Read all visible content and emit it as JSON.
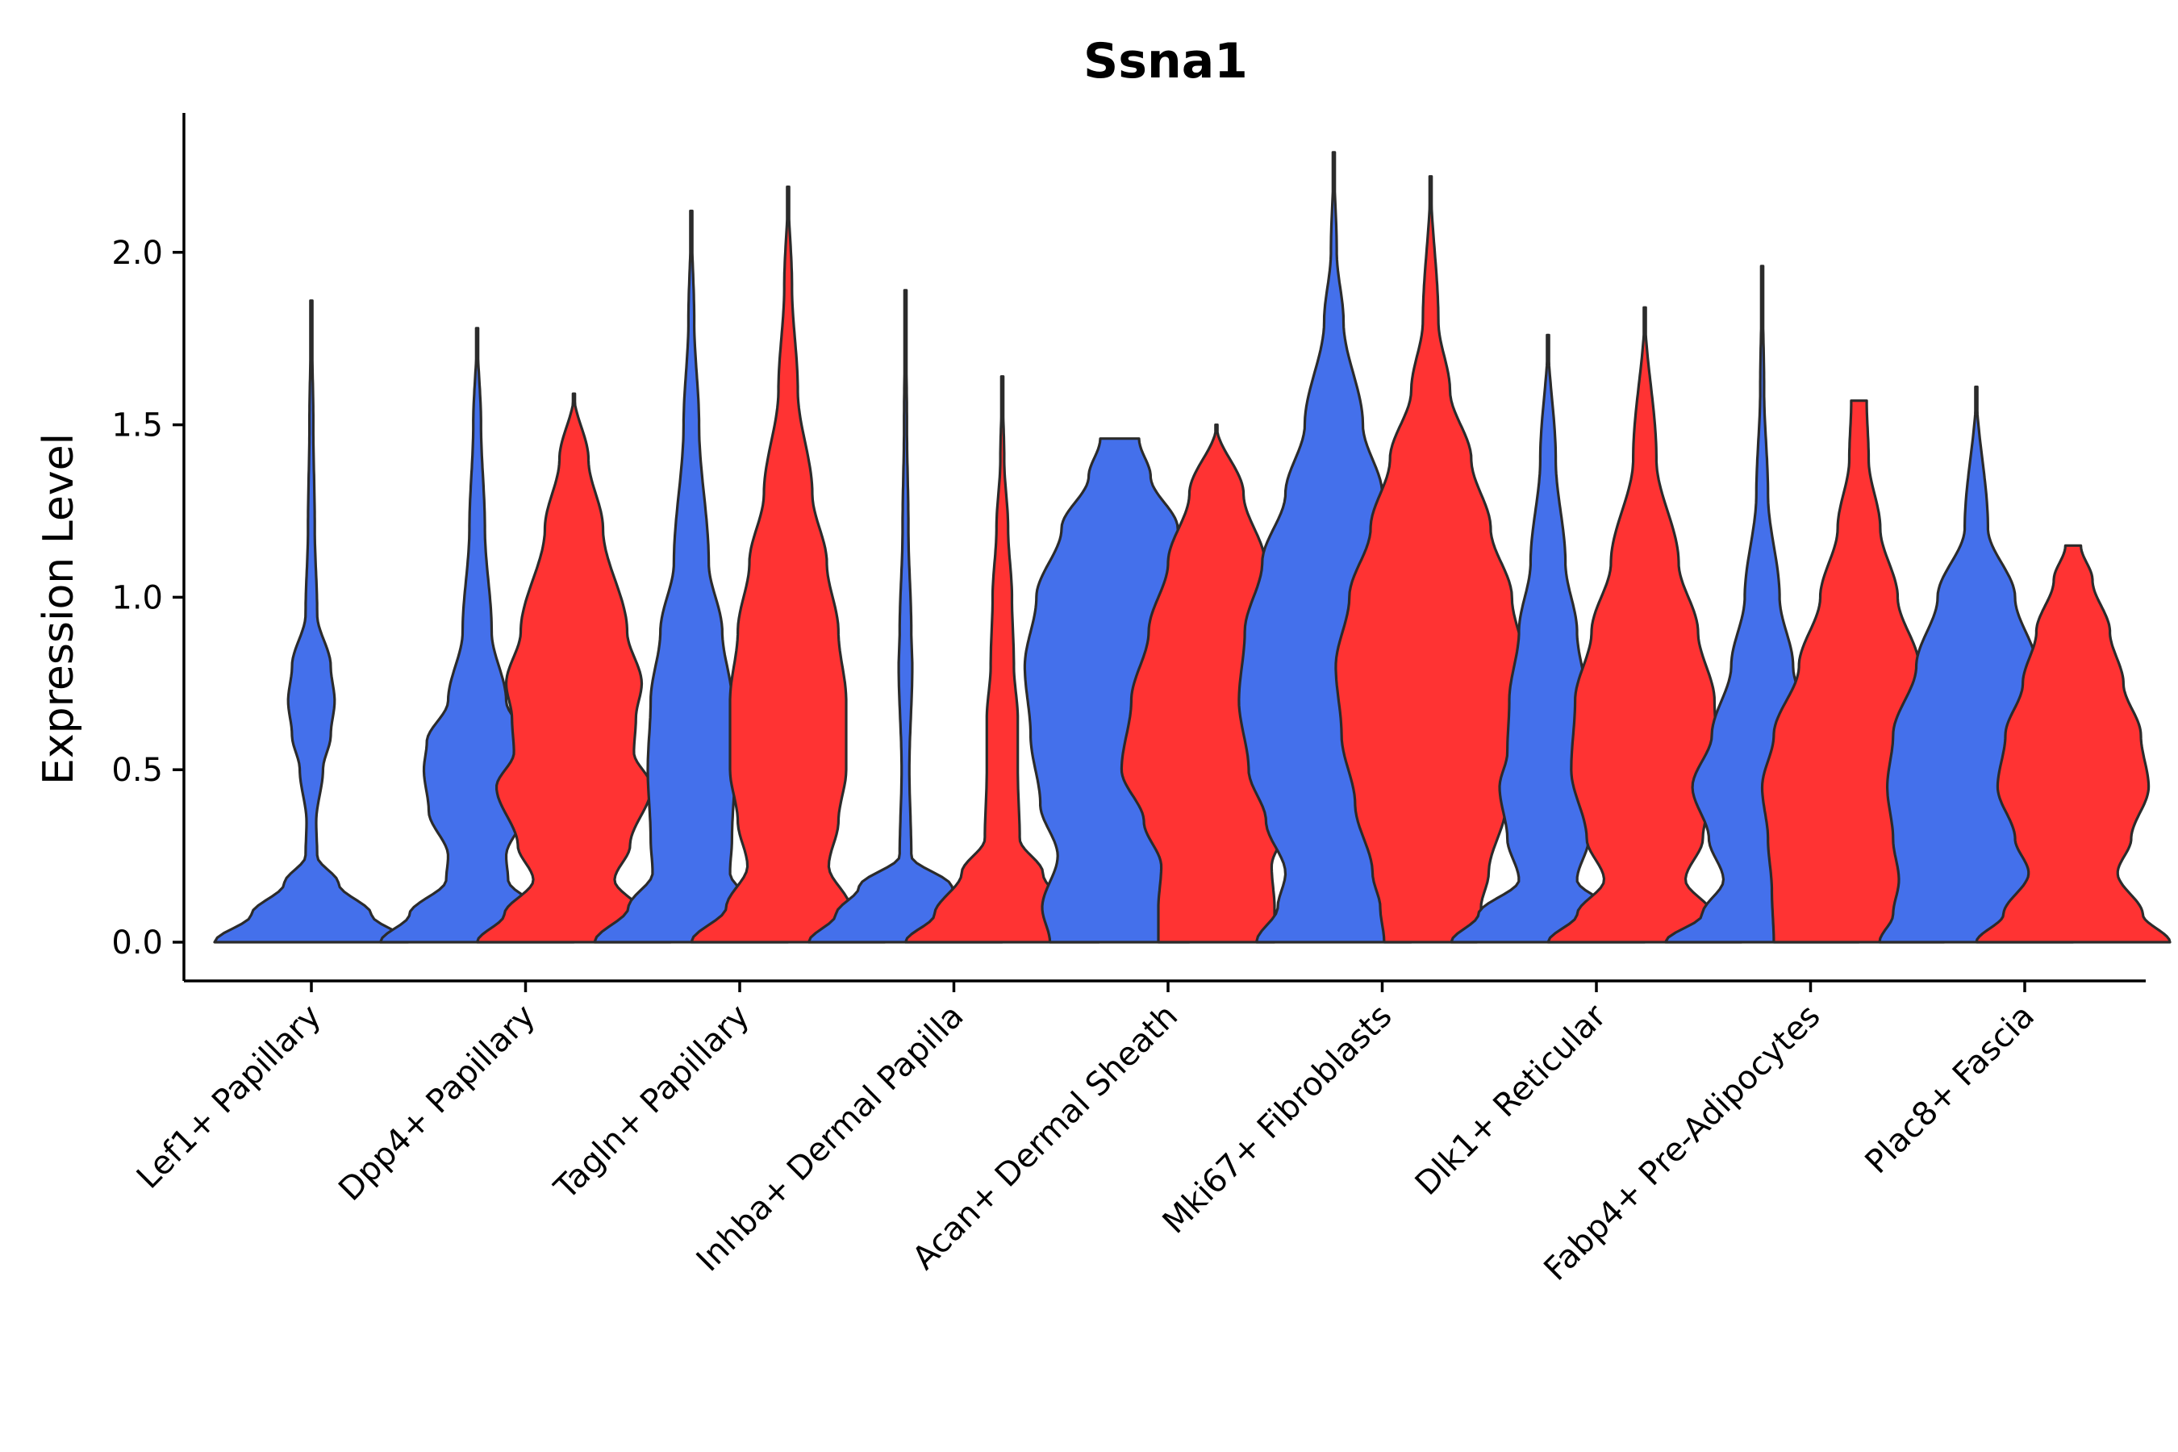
{
  "chart_data": {
    "type": "violin",
    "title": "Ssna1",
    "xlabel": "",
    "ylabel": "Expression Level",
    "ylim": [
      -0.12,
      2.4
    ],
    "yticks": [
      0.0,
      0.5,
      1.0,
      1.5,
      2.0
    ],
    "ytick_labels": [
      "0.0",
      "0.5",
      "1.0",
      "1.5",
      "2.0"
    ],
    "categories": [
      "Lef1+ Papillary",
      "Dpp4+ Papillary",
      "Tagln+ Papillary",
      "Inhba+ Dermal Papilla",
      "Acan+ Dermal Sheath",
      "Mki67+ Fibroblasts",
      "Dlk1+ Reticular",
      "Fabp4+ Pre-Adipocytes",
      "Plac8+ Fascia"
    ],
    "series_colors": {
      "blue": "#4470EB",
      "red": "#FF3333"
    },
    "violins": [
      {
        "category": 0,
        "group": "blue",
        "solo": true,
        "max": 1.86,
        "profile": [
          [
            0,
            1.0
          ],
          [
            0.08,
            0.62
          ],
          [
            0.17,
            0.28
          ],
          [
            0.25,
            0.06
          ],
          [
            0.35,
            0.05
          ],
          [
            0.5,
            0.12
          ],
          [
            0.6,
            0.2
          ],
          [
            0.7,
            0.24
          ],
          [
            0.8,
            0.2
          ],
          [
            0.95,
            0.06
          ],
          [
            1.2,
            0.035
          ],
          [
            1.5,
            0.02
          ],
          [
            1.86,
            0
          ]
        ]
      },
      {
        "category": 1,
        "group": "blue",
        "max": 1.78,
        "profile": [
          [
            0,
            1.0
          ],
          [
            0.08,
            0.7
          ],
          [
            0.18,
            0.32
          ],
          [
            0.25,
            0.3
          ],
          [
            0.38,
            0.5
          ],
          [
            0.5,
            0.55
          ],
          [
            0.58,
            0.52
          ],
          [
            0.7,
            0.3
          ],
          [
            0.9,
            0.15
          ],
          [
            1.2,
            0.08
          ],
          [
            1.5,
            0.04
          ],
          [
            1.78,
            0
          ]
        ]
      },
      {
        "category": 1,
        "group": "red",
        "max": 1.59,
        "profile": [
          [
            0,
            1.0
          ],
          [
            0.08,
            0.72
          ],
          [
            0.18,
            0.42
          ],
          [
            0.28,
            0.58
          ],
          [
            0.45,
            0.8
          ],
          [
            0.55,
            0.62
          ],
          [
            0.65,
            0.64
          ],
          [
            0.75,
            0.7
          ],
          [
            0.9,
            0.55
          ],
          [
            1.2,
            0.3
          ],
          [
            1.4,
            0.15
          ],
          [
            1.59,
            0
          ]
        ]
      },
      {
        "category": 2,
        "group": "blue",
        "max": 2.12,
        "profile": [
          [
            0,
            1.0
          ],
          [
            0.1,
            0.65
          ],
          [
            0.2,
            0.4
          ],
          [
            0.3,
            0.42
          ],
          [
            0.5,
            0.45
          ],
          [
            0.7,
            0.42
          ],
          [
            0.9,
            0.32
          ],
          [
            1.1,
            0.18
          ],
          [
            1.5,
            0.08
          ],
          [
            1.8,
            0.03
          ],
          [
            2.12,
            0
          ]
        ]
      },
      {
        "category": 2,
        "group": "red",
        "max": 2.19,
        "profile": [
          [
            0,
            1.0
          ],
          [
            0.1,
            0.64
          ],
          [
            0.22,
            0.42
          ],
          [
            0.35,
            0.52
          ],
          [
            0.5,
            0.6
          ],
          [
            0.7,
            0.6
          ],
          [
            0.9,
            0.52
          ],
          [
            1.1,
            0.4
          ],
          [
            1.3,
            0.25
          ],
          [
            1.6,
            0.1
          ],
          [
            1.9,
            0.04
          ],
          [
            2.19,
            0
          ]
        ]
      },
      {
        "category": 3,
        "group": "blue",
        "max": 1.89,
        "profile": [
          [
            0,
            1.0
          ],
          [
            0.08,
            0.72
          ],
          [
            0.16,
            0.48
          ],
          [
            0.25,
            0.06
          ],
          [
            0.5,
            0.04
          ],
          [
            0.8,
            0.07
          ],
          [
            0.9,
            0.06
          ],
          [
            1.2,
            0.03
          ],
          [
            1.5,
            0.015
          ],
          [
            1.89,
            0
          ]
        ]
      },
      {
        "category": 3,
        "group": "red",
        "max": 1.64,
        "profile": [
          [
            0,
            1.0
          ],
          [
            0.08,
            0.7
          ],
          [
            0.2,
            0.42
          ],
          [
            0.3,
            0.18
          ],
          [
            0.5,
            0.16
          ],
          [
            0.65,
            0.16
          ],
          [
            0.8,
            0.12
          ],
          [
            1.0,
            0.1
          ],
          [
            1.2,
            0.06
          ],
          [
            1.4,
            0.02
          ],
          [
            1.64,
            0
          ]
        ]
      },
      {
        "category": 4,
        "group": "blue",
        "max": 1.46,
        "profile": [
          [
            0,
            0.72
          ],
          [
            0.1,
            0.8
          ],
          [
            0.25,
            0.64
          ],
          [
            0.4,
            0.82
          ],
          [
            0.6,
            0.92
          ],
          [
            0.8,
            0.98
          ],
          [
            1.0,
            0.86
          ],
          [
            1.2,
            0.6
          ],
          [
            1.35,
            0.32
          ],
          [
            1.46,
            0.2
          ]
        ]
      },
      {
        "category": 4,
        "group": "red",
        "max": 1.5,
        "profile": [
          [
            0,
            0.6
          ],
          [
            0.1,
            0.6
          ],
          [
            0.22,
            0.57
          ],
          [
            0.35,
            0.75
          ],
          [
            0.5,
            0.98
          ],
          [
            0.7,
            0.88
          ],
          [
            0.9,
            0.7
          ],
          [
            1.1,
            0.5
          ],
          [
            1.3,
            0.28
          ],
          [
            1.5,
            0
          ]
        ]
      },
      {
        "category": 5,
        "group": "blue",
        "max": 2.29,
        "profile": [
          [
            0,
            0.8
          ],
          [
            0.1,
            0.58
          ],
          [
            0.2,
            0.5
          ],
          [
            0.35,
            0.7
          ],
          [
            0.5,
            0.88
          ],
          [
            0.7,
            0.98
          ],
          [
            0.9,
            0.92
          ],
          [
            1.1,
            0.74
          ],
          [
            1.3,
            0.5
          ],
          [
            1.5,
            0.3
          ],
          [
            1.8,
            0.1
          ],
          [
            2.0,
            0.03
          ],
          [
            2.29,
            0
          ]
        ]
      },
      {
        "category": 5,
        "group": "red",
        "max": 2.22,
        "profile": [
          [
            0,
            0.48
          ],
          [
            0.1,
            0.52
          ],
          [
            0.2,
            0.6
          ],
          [
            0.4,
            0.78
          ],
          [
            0.6,
            0.92
          ],
          [
            0.8,
            0.98
          ],
          [
            1.0,
            0.84
          ],
          [
            1.2,
            0.62
          ],
          [
            1.4,
            0.42
          ],
          [
            1.6,
            0.2
          ],
          [
            1.8,
            0.08
          ],
          [
            2.22,
            0
          ]
        ]
      },
      {
        "category": 6,
        "group": "blue",
        "max": 1.76,
        "profile": [
          [
            0,
            1.0
          ],
          [
            0.08,
            0.72
          ],
          [
            0.18,
            0.3
          ],
          [
            0.3,
            0.42
          ],
          [
            0.45,
            0.5
          ],
          [
            0.55,
            0.42
          ],
          [
            0.7,
            0.4
          ],
          [
            0.9,
            0.3
          ],
          [
            1.1,
            0.18
          ],
          [
            1.4,
            0.08
          ],
          [
            1.76,
            0
          ]
        ]
      },
      {
        "category": 6,
        "group": "red",
        "max": 1.84,
        "profile": [
          [
            0,
            1.0
          ],
          [
            0.08,
            0.7
          ],
          [
            0.18,
            0.42
          ],
          [
            0.3,
            0.6
          ],
          [
            0.5,
            0.76
          ],
          [
            0.7,
            0.72
          ],
          [
            0.9,
            0.55
          ],
          [
            1.1,
            0.35
          ],
          [
            1.4,
            0.12
          ],
          [
            1.84,
            0
          ]
        ]
      },
      {
        "category": 7,
        "group": "blue",
        "max": 1.96,
        "profile": [
          [
            0,
            1.0
          ],
          [
            0.08,
            0.62
          ],
          [
            0.18,
            0.4
          ],
          [
            0.3,
            0.55
          ],
          [
            0.45,
            0.72
          ],
          [
            0.6,
            0.52
          ],
          [
            0.8,
            0.32
          ],
          [
            1.0,
            0.18
          ],
          [
            1.3,
            0.06
          ],
          [
            1.6,
            0.02
          ],
          [
            1.96,
            0
          ]
        ]
      },
      {
        "category": 7,
        "group": "red",
        "max": 1.57,
        "profile": [
          [
            0,
            0.88
          ],
          [
            0.15,
            0.9
          ],
          [
            0.3,
            0.94
          ],
          [
            0.45,
            1.0
          ],
          [
            0.6,
            0.88
          ],
          [
            0.8,
            0.62
          ],
          [
            1.0,
            0.4
          ],
          [
            1.2,
            0.22
          ],
          [
            1.4,
            0.1
          ],
          [
            1.57,
            0.08
          ]
        ]
      },
      {
        "category": 8,
        "group": "blue",
        "max": 1.61,
        "profile": [
          [
            0,
            1.0
          ],
          [
            0.08,
            0.86
          ],
          [
            0.18,
            0.8
          ],
          [
            0.3,
            0.86
          ],
          [
            0.45,
            0.92
          ],
          [
            0.6,
            0.86
          ],
          [
            0.8,
            0.62
          ],
          [
            1.0,
            0.4
          ],
          [
            1.2,
            0.12
          ],
          [
            1.61,
            0
          ]
        ]
      },
      {
        "category": 8,
        "group": "red",
        "max": 1.15,
        "profile": [
          [
            0,
            1.0
          ],
          [
            0.08,
            0.72
          ],
          [
            0.2,
            0.46
          ],
          [
            0.3,
            0.6
          ],
          [
            0.45,
            0.78
          ],
          [
            0.6,
            0.7
          ],
          [
            0.75,
            0.52
          ],
          [
            0.9,
            0.38
          ],
          [
            1.05,
            0.2
          ],
          [
            1.15,
            0.08
          ]
        ]
      }
    ]
  }
}
